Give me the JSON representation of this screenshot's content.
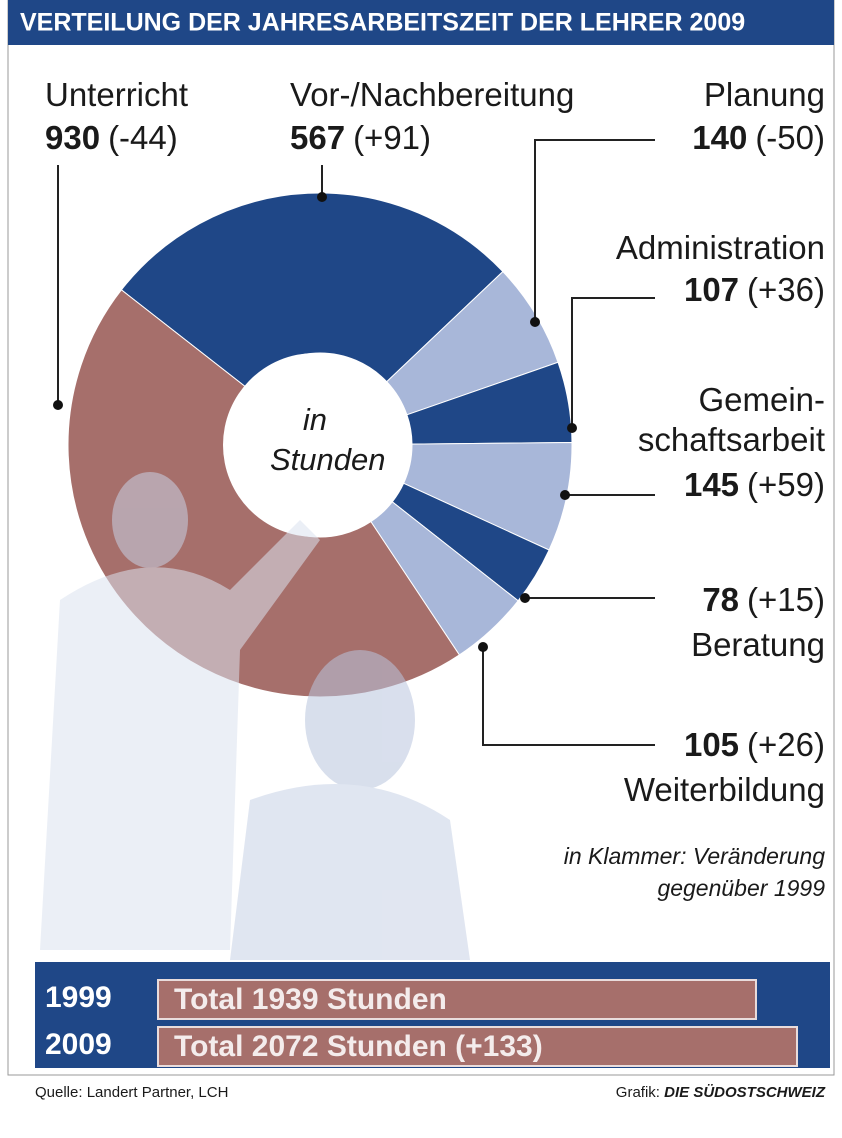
{
  "chart_data": [
    {
      "type": "pie",
      "title": "VERTEILUNG DER JAHRESARBEITSZEIT DER LEHRER 2009",
      "center_label": "in\nStunden",
      "categories": [
        "Vor-/Nachbereitung",
        "Planung",
        "Administration",
        "Gemein-\nschaftsarbeit",
        "Beratung",
        "Weiterbildung",
        "Unterricht"
      ],
      "values": [
        567,
        140,
        107,
        145,
        78,
        105,
        930
      ],
      "change_labels": [
        "(+91)",
        "(-50)",
        "(+36)",
        "(+59)",
        "(+15)",
        "(+26)",
        "(-44)"
      ],
      "colors": [
        "#1f4787",
        "#a8b7d9",
        "#1f4787",
        "#a8b7d9",
        "#1f4787",
        "#a8b7d9",
        "#a66f6b"
      ],
      "note": "in Klammer: Veränderung\ngegenüber 1999"
    },
    {
      "type": "bar",
      "categories": [
        "1999",
        "2009"
      ],
      "values": [
        1939,
        2072
      ],
      "value_labels": [
        "Total 1939 Stunden",
        "Total 2072 Stunden (+133)"
      ],
      "color": "#a66f6b"
    }
  ],
  "source": "Quelle: Landert Partner, LCH",
  "credit_label": "Grafik:",
  "credit_brand": "DIE SÜDOSTSCHWEIZ"
}
